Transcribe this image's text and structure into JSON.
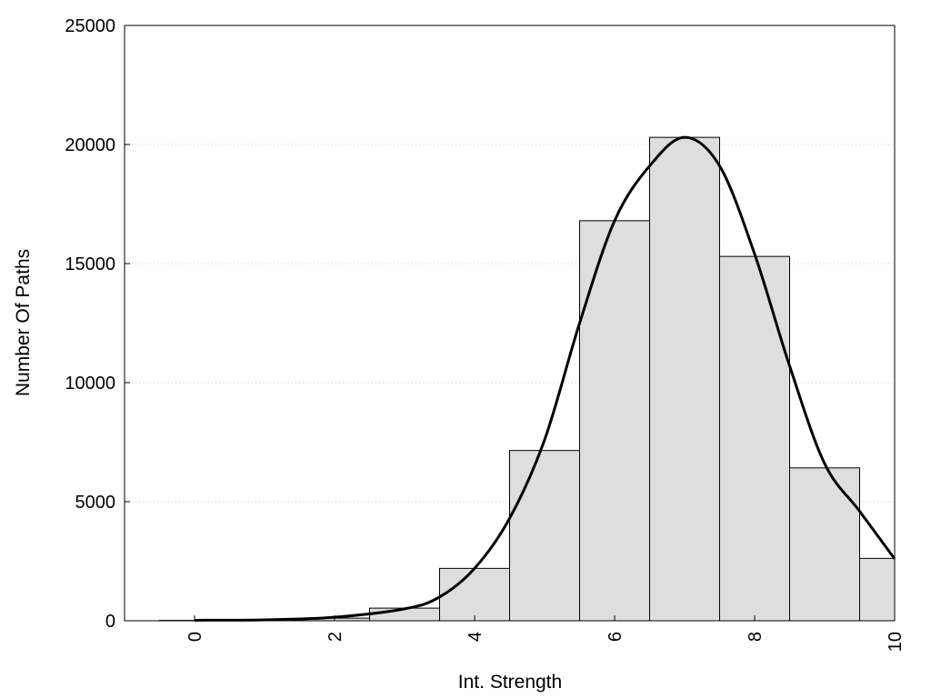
{
  "chart_data": {
    "type": "bar",
    "title": "",
    "xlabel": "Int. Strength",
    "ylabel": "Number Of Paths",
    "xlim": [
      -1,
      10
    ],
    "ylim": [
      0,
      25000
    ],
    "x_ticks": [
      "0",
      "2",
      "4",
      "6",
      "8",
      "10"
    ],
    "y_ticks": [
      "0",
      "5000",
      "10000",
      "15000",
      "20000",
      "25000"
    ],
    "grid": "horizontal dotted",
    "legend": "none",
    "colors": {
      "bar_fill": "#dedede",
      "bar_stroke": "#000000",
      "curve": "#000000",
      "grid": "#cccccc"
    },
    "series": [
      {
        "type": "histogram",
        "x": [
          0,
          1,
          2,
          3,
          4,
          5,
          6,
          7,
          8,
          9,
          10
        ],
        "values": [
          15,
          40,
          110,
          530,
          2200,
          7150,
          16800,
          20300,
          15300,
          6420,
          2620
        ]
      },
      {
        "type": "density-line",
        "x": [
          0,
          1,
          2,
          3,
          3.5,
          4,
          4.5,
          5,
          5.5,
          6,
          6.5,
          7,
          7.5,
          8,
          8.5,
          9,
          9.5,
          10
        ],
        "values": [
          20,
          40,
          150,
          500,
          1000,
          2200,
          4300,
          7600,
          12500,
          16800,
          19100,
          20300,
          19100,
          15400,
          10700,
          6600,
          4600,
          2600
        ]
      }
    ]
  }
}
